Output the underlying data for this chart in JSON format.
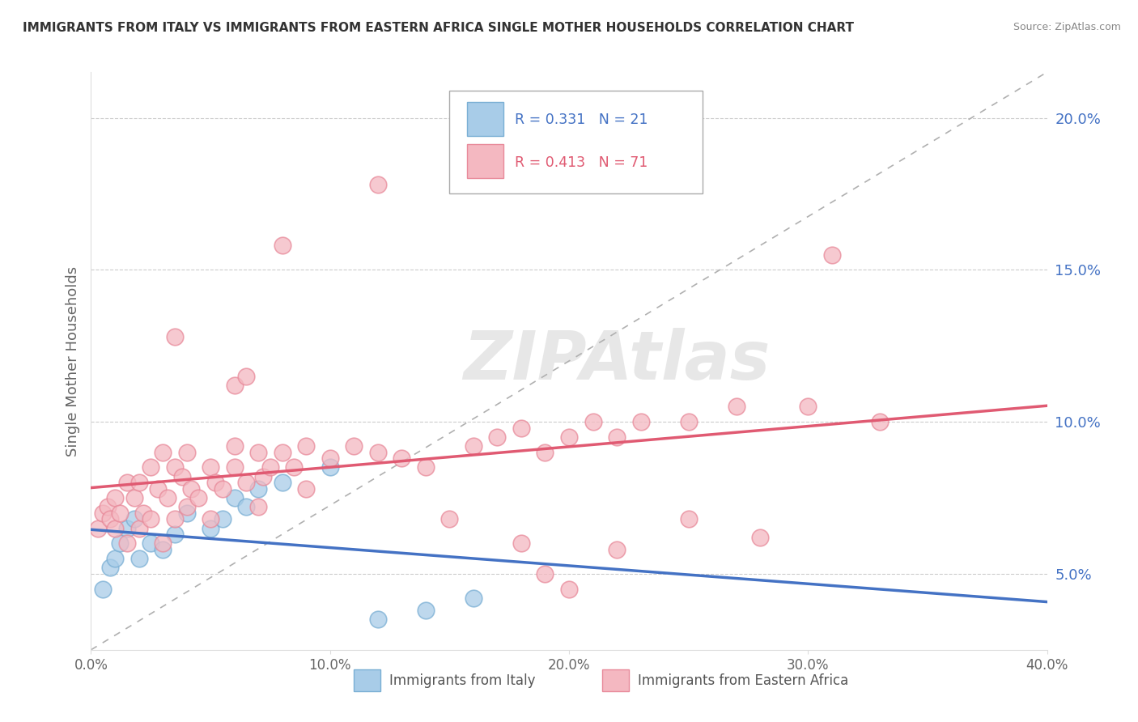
{
  "title": "IMMIGRANTS FROM ITALY VS IMMIGRANTS FROM EASTERN AFRICA SINGLE MOTHER HOUSEHOLDS CORRELATION CHART",
  "source": "Source: ZipAtlas.com",
  "ylabel": "Single Mother Households",
  "xlim": [
    0.0,
    0.4
  ],
  "ylim": [
    0.025,
    0.215
  ],
  "yticks": [
    0.05,
    0.1,
    0.15,
    0.2
  ],
  "ytick_labels": [
    "5.0%",
    "10.0%",
    "15.0%",
    "20.0%"
  ],
  "xticks": [
    0.0,
    0.1,
    0.2,
    0.3,
    0.4
  ],
  "xtick_labels": [
    "0.0%",
    "10.0%",
    "20.0%",
    "30.0%",
    "40.0%"
  ],
  "italy_R": 0.331,
  "italy_N": 21,
  "ea_R": 0.413,
  "ea_N": 71,
  "italy_dot_color": "#a8cce8",
  "ea_dot_color": "#f4b8c1",
  "italy_edge_color": "#7aafd4",
  "ea_edge_color": "#e88a9a",
  "italy_line_color": "#4472c4",
  "ea_line_color": "#e05a72",
  "diag_line_color": "#b0b0b0",
  "italy_scatter_x": [
    0.005,
    0.008,
    0.01,
    0.012,
    0.015,
    0.018,
    0.02,
    0.025,
    0.03,
    0.035,
    0.04,
    0.05,
    0.055,
    0.06,
    0.065,
    0.07,
    0.08,
    0.1,
    0.12,
    0.14,
    0.16
  ],
  "italy_scatter_y": [
    0.045,
    0.052,
    0.055,
    0.06,
    0.065,
    0.068,
    0.055,
    0.06,
    0.058,
    0.063,
    0.07,
    0.065,
    0.068,
    0.075,
    0.072,
    0.078,
    0.08,
    0.085,
    0.035,
    0.038,
    0.042
  ],
  "ea_scatter_x": [
    0.003,
    0.005,
    0.007,
    0.008,
    0.01,
    0.01,
    0.012,
    0.015,
    0.015,
    0.018,
    0.02,
    0.02,
    0.022,
    0.025,
    0.025,
    0.028,
    0.03,
    0.03,
    0.032,
    0.035,
    0.035,
    0.038,
    0.04,
    0.04,
    0.042,
    0.045,
    0.05,
    0.05,
    0.052,
    0.055,
    0.06,
    0.06,
    0.065,
    0.07,
    0.07,
    0.072,
    0.075,
    0.08,
    0.085,
    0.09,
    0.09,
    0.1,
    0.11,
    0.12,
    0.13,
    0.14,
    0.15,
    0.16,
    0.17,
    0.18,
    0.19,
    0.2,
    0.21,
    0.22,
    0.23,
    0.25,
    0.27,
    0.3,
    0.33,
    0.035,
    0.06,
    0.065,
    0.08,
    0.12,
    0.18,
    0.22,
    0.28,
    0.31,
    0.19,
    0.2,
    0.25
  ],
  "ea_scatter_y": [
    0.065,
    0.07,
    0.072,
    0.068,
    0.065,
    0.075,
    0.07,
    0.06,
    0.08,
    0.075,
    0.065,
    0.08,
    0.07,
    0.068,
    0.085,
    0.078,
    0.06,
    0.09,
    0.075,
    0.068,
    0.085,
    0.082,
    0.072,
    0.09,
    0.078,
    0.075,
    0.068,
    0.085,
    0.08,
    0.078,
    0.085,
    0.092,
    0.08,
    0.072,
    0.09,
    0.082,
    0.085,
    0.09,
    0.085,
    0.092,
    0.078,
    0.088,
    0.092,
    0.09,
    0.088,
    0.085,
    0.068,
    0.092,
    0.095,
    0.098,
    0.09,
    0.095,
    0.1,
    0.095,
    0.1,
    0.1,
    0.105,
    0.105,
    0.1,
    0.128,
    0.112,
    0.115,
    0.158,
    0.178,
    0.06,
    0.058,
    0.062,
    0.155,
    0.05,
    0.045,
    0.068
  ]
}
